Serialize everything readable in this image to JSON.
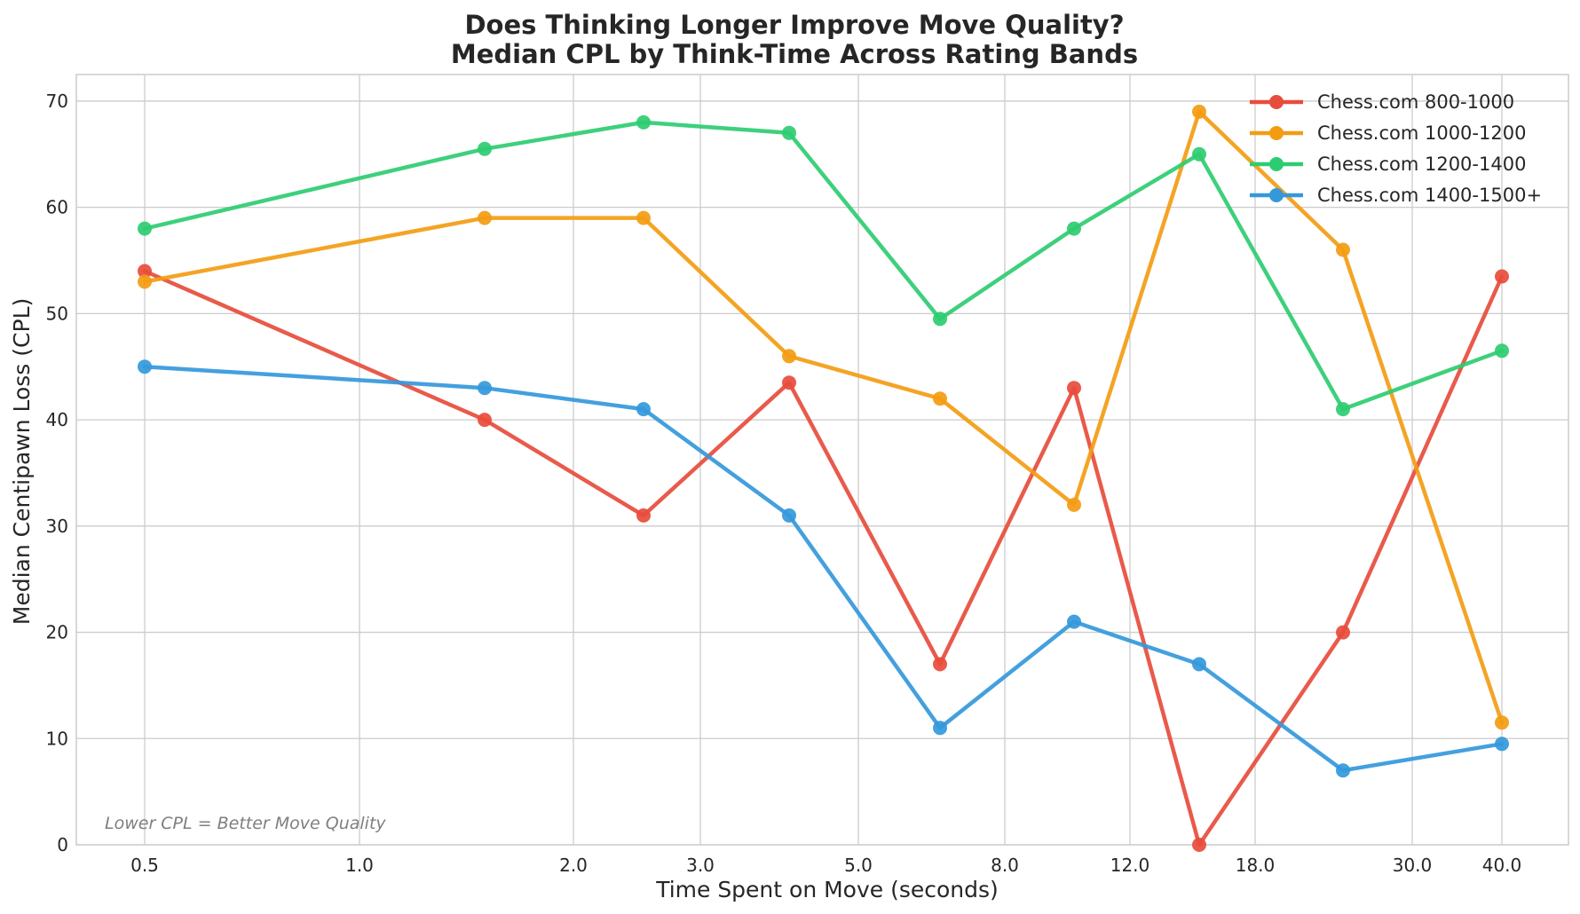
{
  "chart_data": {
    "type": "line",
    "title": "Does Thinking Longer Improve Move Quality?",
    "subtitle": "Median CPL by Think-Time Across Rating Bands",
    "xlabel": "Time Spent on Move (seconds)",
    "ylabel": "Median Centipawn Loss (CPL)",
    "x_tick_labels": [
      "0.5",
      "1.0",
      "2.0",
      "3.0",
      "5.0",
      "8.0",
      "12.0",
      "18.0",
      "30.0",
      "40.0"
    ],
    "y_ticks": [
      0,
      10,
      20,
      30,
      40,
      50,
      60,
      70
    ],
    "ylim": [
      0,
      72.5
    ],
    "grid": true,
    "legend_position": "top-right",
    "annotation": "Lower CPL = Better Move Quality",
    "series": [
      {
        "name": "Chess.com 800-1000",
        "color": "#e74c3c",
        "points": [
          [
            0.5,
            54
          ],
          [
            1.5,
            40
          ],
          [
            2.5,
            31
          ],
          [
            4.0,
            43.5
          ],
          [
            6.5,
            17
          ],
          [
            10.0,
            43
          ],
          [
            15.0,
            0
          ],
          [
            25.0,
            20
          ],
          [
            40.0,
            53.5
          ]
        ]
      },
      {
        "name": "Chess.com 1000-1200",
        "color": "#f39c12",
        "points": [
          [
            0.5,
            53
          ],
          [
            1.5,
            59
          ],
          [
            2.5,
            59
          ],
          [
            4.0,
            46
          ],
          [
            6.5,
            42
          ],
          [
            10.0,
            32
          ],
          [
            15.0,
            69
          ],
          [
            25.0,
            56
          ],
          [
            40.0,
            11.5
          ]
        ]
      },
      {
        "name": "Chess.com 1200-1400",
        "color": "#2ecc71",
        "points": [
          [
            0.5,
            58
          ],
          [
            1.5,
            65.5
          ],
          [
            2.5,
            68
          ],
          [
            4.0,
            67
          ],
          [
            6.5,
            49.5
          ],
          [
            10.0,
            58
          ],
          [
            15.0,
            65
          ],
          [
            25.0,
            41
          ],
          [
            40.0,
            46.5
          ]
        ]
      },
      {
        "name": "Chess.com 1400-1500+",
        "color": "#3498db",
        "points": [
          [
            0.5,
            45
          ],
          [
            1.5,
            43
          ],
          [
            2.5,
            41
          ],
          [
            4.0,
            31
          ],
          [
            6.5,
            11
          ],
          [
            10.0,
            21
          ],
          [
            15.0,
            17
          ],
          [
            25.0,
            7
          ],
          [
            40.0,
            9.5
          ]
        ]
      }
    ]
  }
}
